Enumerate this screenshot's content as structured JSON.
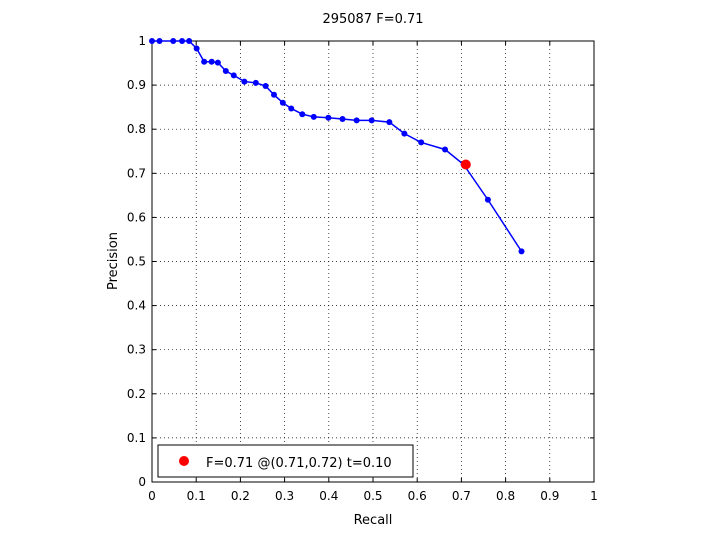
{
  "chart_data": {
    "type": "line",
    "title": "295087 F=0.71",
    "xlabel": "Recall",
    "ylabel": "Precision",
    "xlim": [
      0,
      1
    ],
    "ylim": [
      0,
      1
    ],
    "grid": true,
    "xticks": [
      "0",
      "0.1",
      "0.2",
      "0.3",
      "0.4",
      "0.5",
      "0.6",
      "0.7",
      "0.8",
      "0.9",
      "1"
    ],
    "yticks": [
      "0",
      "0.1",
      "0.2",
      "0.3",
      "0.4",
      "0.5",
      "0.6",
      "0.7",
      "0.8",
      "0.9",
      "1"
    ],
    "series": [
      {
        "color": "#0000ff",
        "x": [
          0.0,
          0.017,
          0.048,
          0.068,
          0.084,
          0.101,
          0.118,
          0.135,
          0.149,
          0.167,
          0.185,
          0.209,
          0.235,
          0.257,
          0.276,
          0.296,
          0.315,
          0.34,
          0.366,
          0.399,
          0.431,
          0.463,
          0.497,
          0.537,
          0.571,
          0.609,
          0.663,
          0.705,
          0.76,
          0.836
        ],
        "y": [
          1.0,
          1.0,
          1.0,
          1.0,
          1.0,
          0.983,
          0.953,
          0.953,
          0.951,
          0.932,
          0.922,
          0.908,
          0.905,
          0.898,
          0.878,
          0.86,
          0.847,
          0.834,
          0.828,
          0.826,
          0.823,
          0.82,
          0.82,
          0.816,
          0.79,
          0.77,
          0.754,
          0.72,
          0.64,
          0.523
        ]
      }
    ],
    "highlight": {
      "x": 0.71,
      "y": 0.72,
      "color": "#ff0000"
    },
    "legend": {
      "position": "bottom-left",
      "label": "F=0.71 @(0.71,0.72) t=0.10"
    }
  }
}
